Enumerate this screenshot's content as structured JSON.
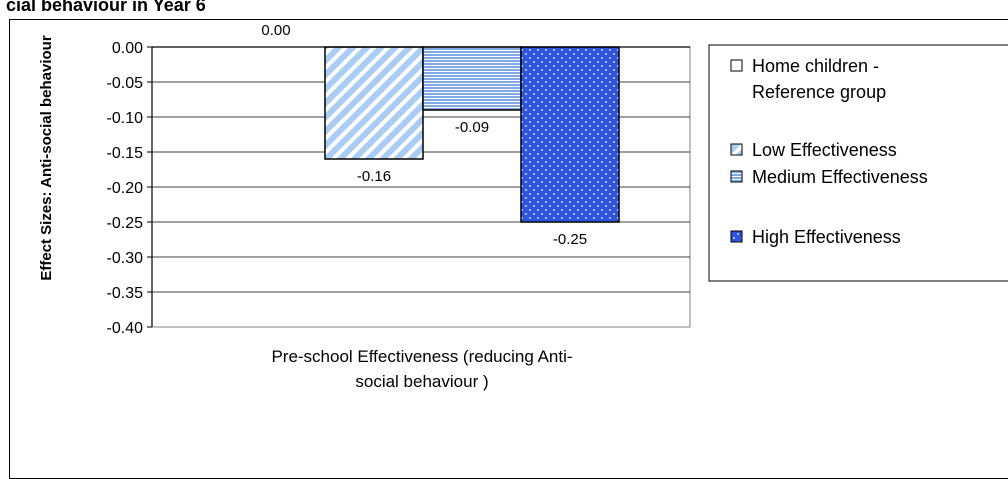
{
  "chart_data": {
    "type": "bar",
    "title": "cial behaviour in Year 6",
    "categories": [
      "Pre-school Effectiveness (reducing Anti- social behaviour )"
    ],
    "category_lines": [
      "Pre-school Effectiveness (reducing Anti-",
      "social behaviour )"
    ],
    "ylabel": "Effect Sizes: Anti-social behaviour",
    "xlabel": "",
    "ylim": [
      -0.4,
      0.0
    ],
    "yticks": [
      "0.00",
      "-0.05",
      "-0.10",
      "-0.15",
      "-0.20",
      "-0.25",
      "-0.30",
      "-0.35",
      "-0.40"
    ],
    "grid": true,
    "legend_position": "right",
    "series": [
      {
        "name": "Home children - Reference group",
        "legend_lines": [
          "Home children -",
          "Reference group"
        ],
        "values": [
          0.0
        ],
        "value_labels": [
          "0.00"
        ],
        "pattern": "none",
        "color": "#ffffff"
      },
      {
        "name": "Low Effectiveness",
        "legend_lines": [
          "Low Effectiveness"
        ],
        "values": [
          -0.16
        ],
        "value_labels": [
          "-0.16"
        ],
        "pattern": "diagonal",
        "color": "#a9cdf4"
      },
      {
        "name": "Medium Effectiveness",
        "legend_lines": [
          "Medium Effectiveness"
        ],
        "values": [
          -0.09
        ],
        "value_labels": [
          "-0.09"
        ],
        "pattern": "horizontal",
        "color": "#7fa8e6"
      },
      {
        "name": "High Effectiveness",
        "legend_lines": [
          "High Effectiveness"
        ],
        "values": [
          -0.25
        ],
        "value_labels": [
          "-0.25"
        ],
        "pattern": "dots",
        "color": "#2e55e0"
      }
    ]
  }
}
